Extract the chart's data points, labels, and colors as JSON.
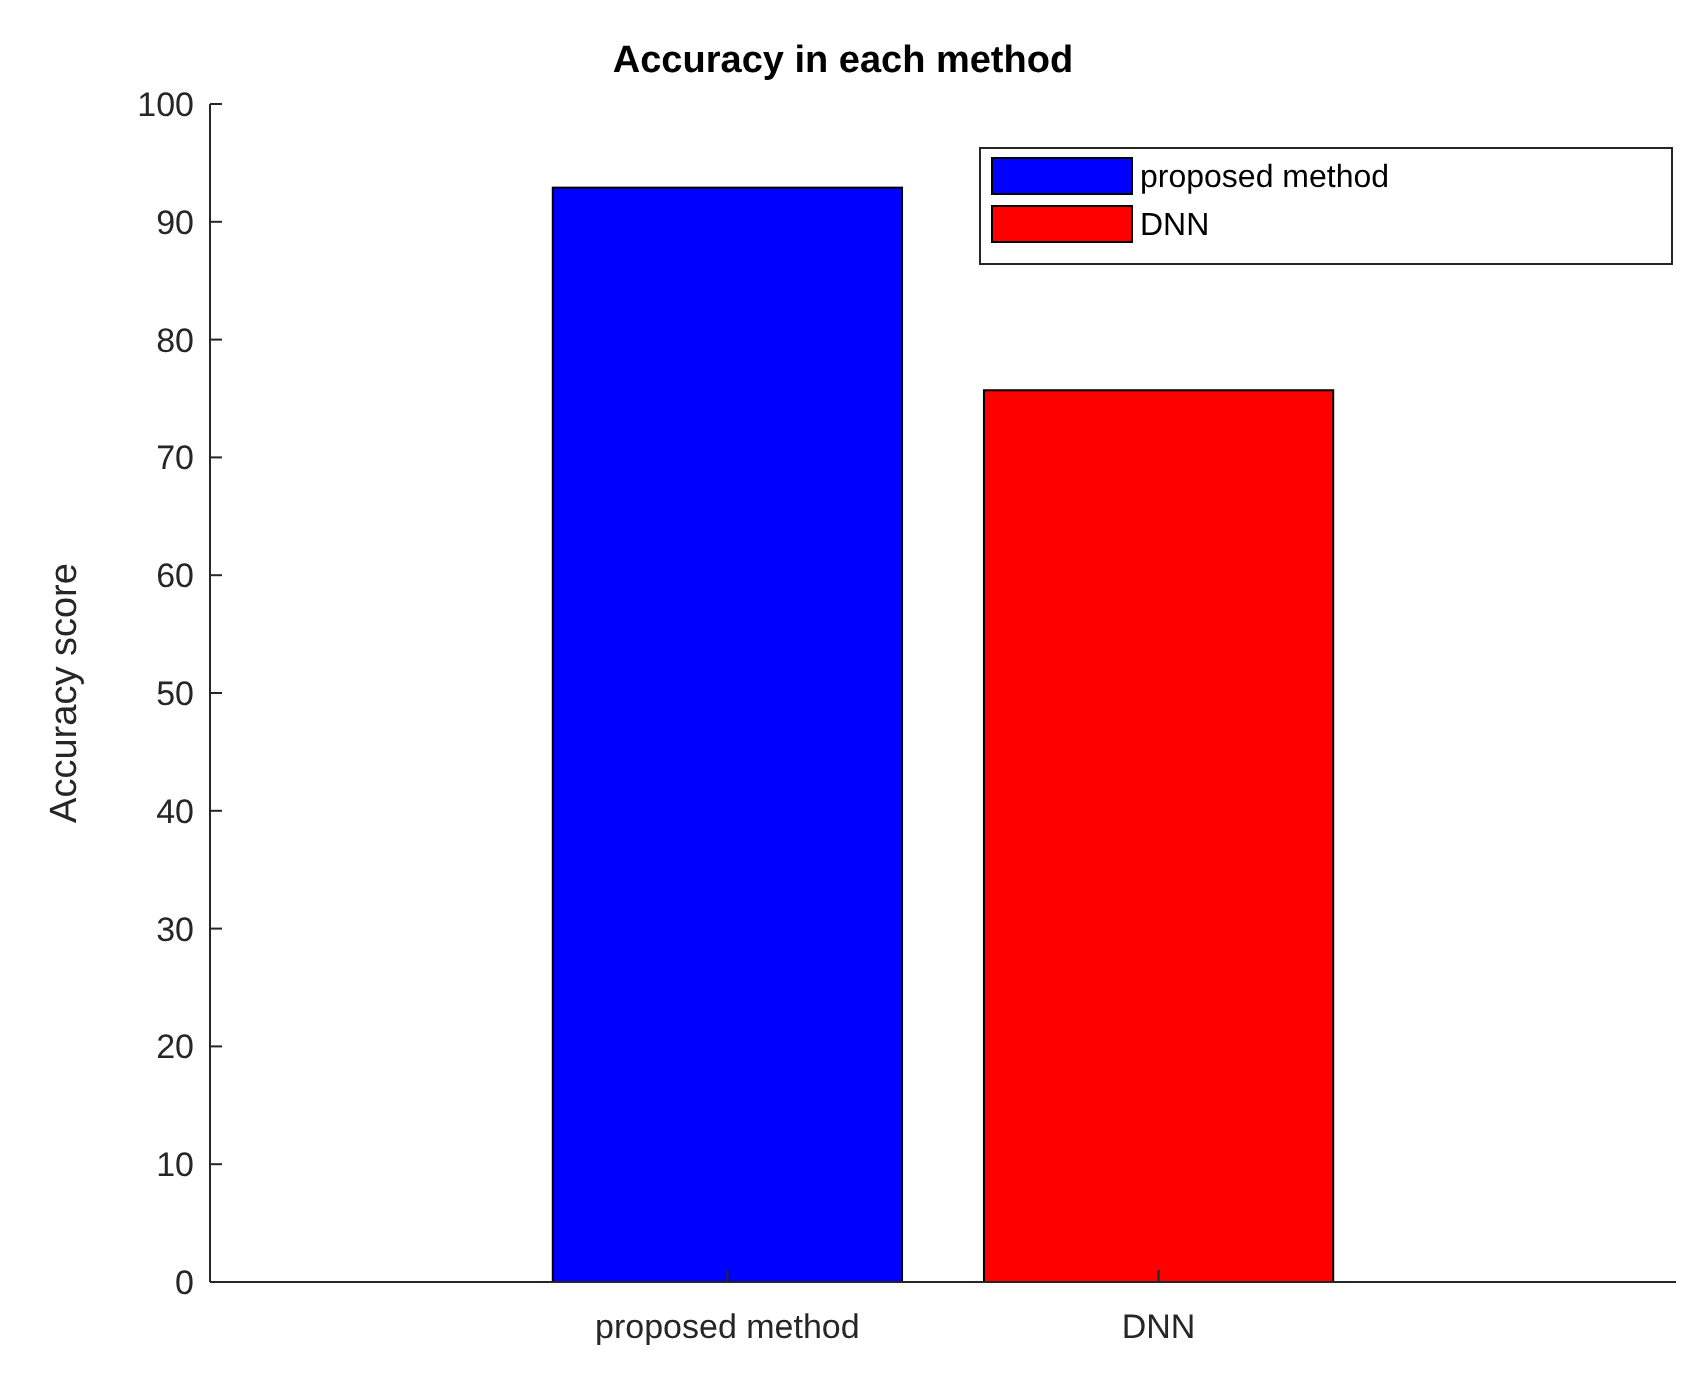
{
  "chart_data": {
    "type": "bar",
    "title": "Accuracy in each method",
    "ylabel": "Accuracy score",
    "categories": [
      "proposed method",
      "DNN"
    ],
    "series": [
      {
        "name": "proposed method",
        "color": "#0000ff",
        "values": [
          92.9,
          null
        ]
      },
      {
        "name": "DNN",
        "color": "#ff0000",
        "values": [
          null,
          75.7
        ]
      }
    ],
    "ylim": [
      0,
      100
    ],
    "yticks": [
      0,
      10,
      20,
      30,
      40,
      50,
      60,
      70,
      80,
      90,
      100
    ],
    "legend": "top right"
  }
}
